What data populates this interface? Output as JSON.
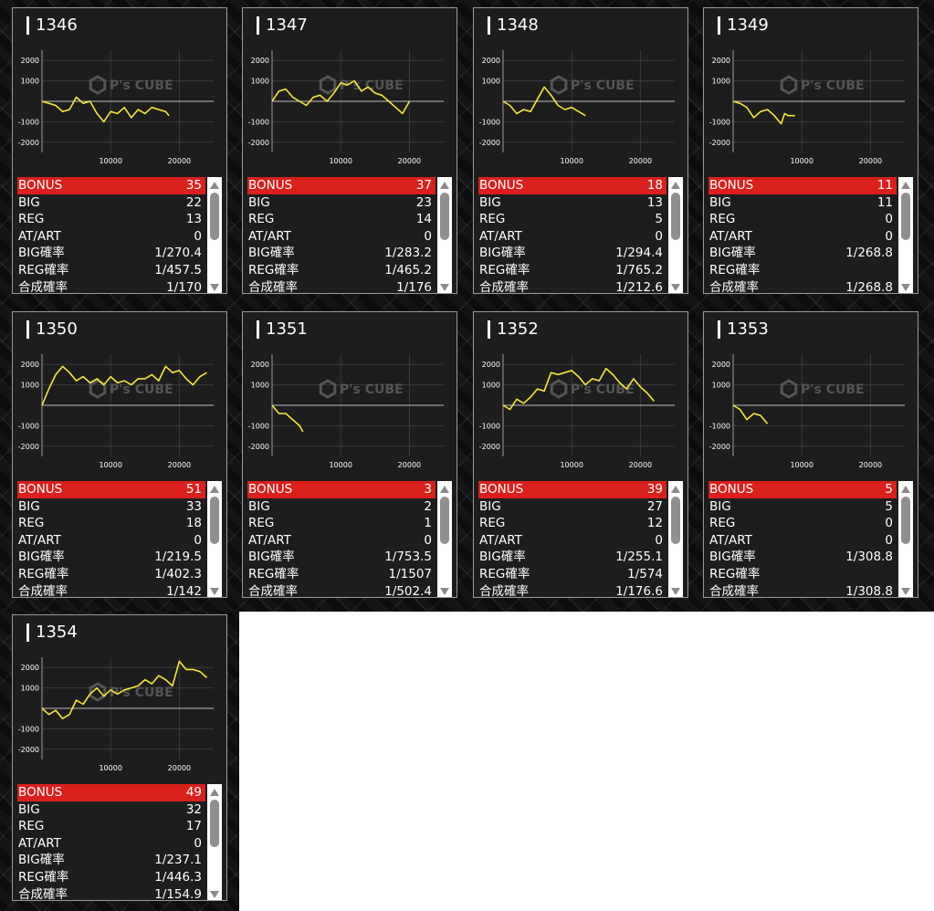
{
  "axis": {
    "y_ticks": [
      "2000",
      "1000",
      "-1000",
      "-2000"
    ],
    "x_ticks": [
      "10000",
      "20000"
    ]
  },
  "watermark": {
    "brand": "P's CUBE"
  },
  "colors": {
    "line": "#f5e63c",
    "bonus_bg": "#d9201c",
    "card_bg": "#1d1d1d"
  },
  "stat_labels": [
    "BONUS",
    "BIG",
    "REG",
    "AT/ART",
    "BIG確率",
    "REG確率",
    "合成確率"
  ],
  "icons": {
    "up": "triangle-up-icon",
    "down": "triangle-down-icon"
  },
  "machines": [
    {
      "number": "1346",
      "stats": [
        "35",
        "22",
        "13",
        "0",
        "1/270.4",
        "1/457.5",
        "1/170"
      ],
      "chart_data": {
        "type": "line",
        "xlim": [
          0,
          25000
        ],
        "ylim": [
          -2500,
          2500
        ],
        "x": [
          0,
          1000,
          2000,
          3000,
          4000,
          5000,
          6000,
          7000,
          8000,
          9000,
          10000,
          11000,
          12000,
          13000,
          14000,
          15000,
          16000,
          17000,
          18000,
          18500
        ],
        "y": [
          0,
          -100,
          -200,
          -500,
          -400,
          200,
          -100,
          0,
          -600,
          -1000,
          -500,
          -600,
          -300,
          -800,
          -400,
          -600,
          -300,
          -400,
          -500,
          -700
        ]
      }
    },
    {
      "number": "1347",
      "stats": [
        "37",
        "23",
        "14",
        "0",
        "1/283.2",
        "1/465.2",
        "1/176"
      ],
      "chart_data": {
        "type": "line",
        "xlim": [
          0,
          25000
        ],
        "ylim": [
          -2500,
          2500
        ],
        "x": [
          0,
          1000,
          2000,
          3000,
          4000,
          5000,
          6000,
          7000,
          8000,
          9000,
          10000,
          11000,
          12000,
          13000,
          14000,
          15000,
          16000,
          17000,
          18000,
          19000,
          20000
        ],
        "y": [
          0,
          500,
          600,
          200,
          0,
          -200,
          200,
          300,
          0,
          400,
          900,
          800,
          1000,
          500,
          700,
          400,
          300,
          0,
          -300,
          -600,
          0
        ]
      }
    },
    {
      "number": "1348",
      "stats": [
        "18",
        "13",
        "5",
        "0",
        "1/294.4",
        "1/765.2",
        "1/212.6"
      ],
      "chart_data": {
        "type": "line",
        "xlim": [
          0,
          25000
        ],
        "ylim": [
          -2500,
          2500
        ],
        "x": [
          0,
          1000,
          2000,
          3000,
          4000,
          5000,
          6000,
          7000,
          8000,
          9000,
          10000,
          11000,
          12000
        ],
        "y": [
          0,
          -200,
          -600,
          -400,
          -500,
          100,
          700,
          300,
          -200,
          -400,
          -300,
          -500,
          -700
        ]
      }
    },
    {
      "number": "1349",
      "stats": [
        "11",
        "11",
        "0",
        "0",
        "1/268.8",
        "",
        "1/268.8"
      ],
      "chart_data": {
        "type": "line",
        "xlim": [
          0,
          25000
        ],
        "ylim": [
          -2500,
          2500
        ],
        "x": [
          0,
          1000,
          2000,
          3000,
          4000,
          5000,
          6000,
          7000,
          7500,
          8000,
          9000
        ],
        "y": [
          0,
          -100,
          -300,
          -800,
          -500,
          -400,
          -700,
          -1100,
          -600,
          -700,
          -700
        ]
      }
    },
    {
      "number": "1350",
      "stats": [
        "51",
        "33",
        "18",
        "0",
        "1/219.5",
        "1/402.3",
        "1/142"
      ],
      "chart_data": {
        "type": "line",
        "xlim": [
          0,
          25000
        ],
        "ylim": [
          -2500,
          2500
        ],
        "x": [
          0,
          1000,
          2000,
          3000,
          4000,
          5000,
          6000,
          7000,
          8000,
          9000,
          10000,
          11000,
          12000,
          13000,
          14000,
          15000,
          16000,
          17000,
          18000,
          19000,
          20000,
          21000,
          22000,
          23000,
          24000
        ],
        "y": [
          0,
          800,
          1500,
          1900,
          1600,
          1200,
          1400,
          1100,
          1300,
          1000,
          1400,
          1100,
          1200,
          1000,
          1300,
          1300,
          1500,
          1200,
          1900,
          1600,
          1700,
          1300,
          1000,
          1400,
          1600
        ]
      }
    },
    {
      "number": "1351",
      "stats": [
        "3",
        "2",
        "1",
        "0",
        "1/753.5",
        "1/1507",
        "1/502.4"
      ],
      "chart_data": {
        "type": "line",
        "xlim": [
          0,
          25000
        ],
        "ylim": [
          -2500,
          2500
        ],
        "x": [
          0,
          1000,
          2000,
          3000,
          4000,
          4500
        ],
        "y": [
          0,
          -400,
          -400,
          -700,
          -1000,
          -1300
        ]
      }
    },
    {
      "number": "1352",
      "stats": [
        "39",
        "27",
        "12",
        "0",
        "1/255.1",
        "1/574",
        "1/176.6"
      ],
      "chart_data": {
        "type": "line",
        "xlim": [
          0,
          25000
        ],
        "ylim": [
          -2500,
          2500
        ],
        "x": [
          0,
          1000,
          2000,
          3000,
          4000,
          5000,
          6000,
          7000,
          8000,
          9000,
          10000,
          11000,
          12000,
          13000,
          14000,
          15000,
          16000,
          17000,
          18000,
          19000,
          20000,
          21000,
          22000
        ],
        "y": [
          0,
          -200,
          300,
          100,
          400,
          800,
          700,
          1600,
          1500,
          1600,
          1700,
          1400,
          1000,
          1300,
          1200,
          1800,
          1500,
          1100,
          800,
          1300,
          900,
          600,
          200
        ]
      }
    },
    {
      "number": "1353",
      "stats": [
        "5",
        "5",
        "0",
        "0",
        "1/308.8",
        "",
        "1/308.8"
      ],
      "chart_data": {
        "type": "line",
        "xlim": [
          0,
          25000
        ],
        "ylim": [
          -2500,
          2500
        ],
        "x": [
          0,
          1000,
          2000,
          3000,
          4000,
          5000
        ],
        "y": [
          0,
          -200,
          -700,
          -400,
          -500,
          -900
        ]
      }
    },
    {
      "number": "1354",
      "stats": [
        "49",
        "32",
        "17",
        "0",
        "1/237.1",
        "1/446.3",
        "1/154.9"
      ],
      "chart_data": {
        "type": "line",
        "xlim": [
          0,
          25000
        ],
        "ylim": [
          -2500,
          2500
        ],
        "x": [
          0,
          1000,
          2000,
          3000,
          4000,
          5000,
          6000,
          7000,
          8000,
          9000,
          10000,
          11000,
          12000,
          13000,
          14000,
          15000,
          16000,
          17000,
          18000,
          19000,
          20000,
          21000,
          22000,
          23000,
          24000
        ],
        "y": [
          0,
          -300,
          -100,
          -500,
          -300,
          400,
          200,
          700,
          1000,
          600,
          900,
          700,
          900,
          1000,
          1100,
          1400,
          1200,
          1600,
          1400,
          1100,
          2300,
          1900,
          1900,
          1800,
          1500
        ]
      }
    }
  ]
}
